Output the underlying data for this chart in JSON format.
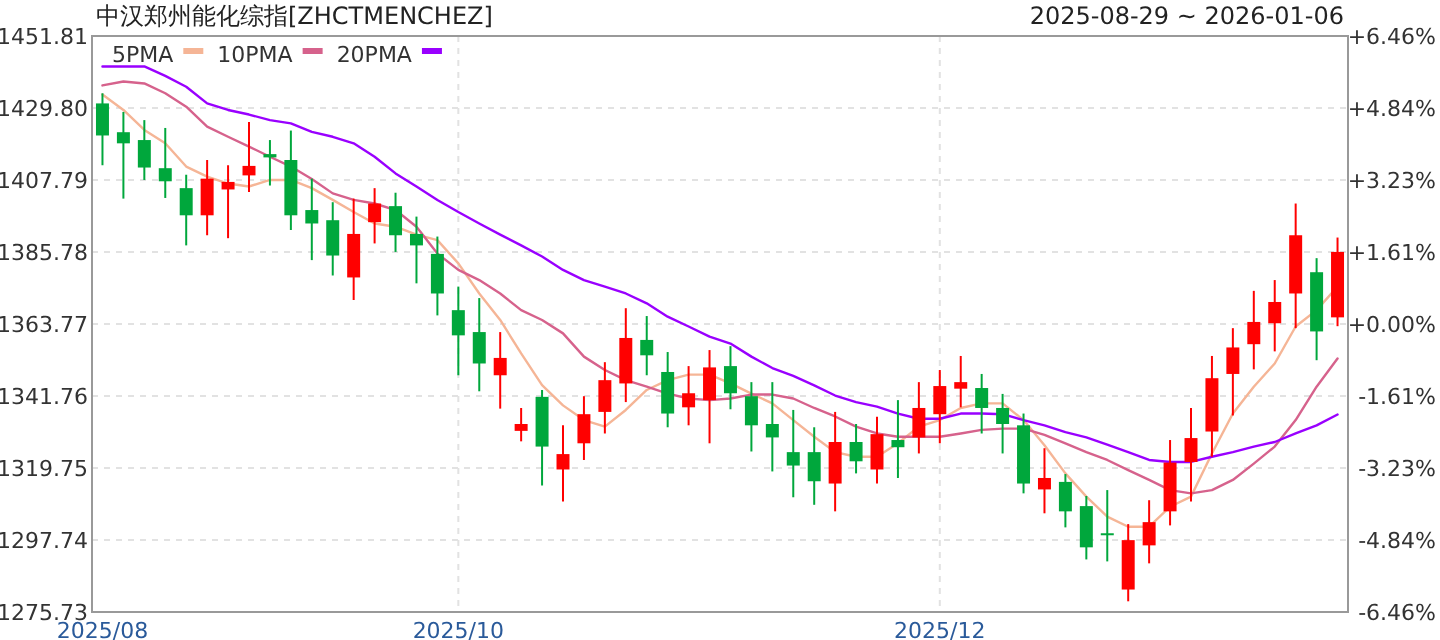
{
  "chart_data": {
    "type": "candlestick",
    "title": "中汉郑州能化综指[ZHCTMENCHEZ]",
    "subtitle": "2025-08-29 ~ 2026-01-06",
    "categories": [
      "2025/08",
      null,
      null,
      null,
      null,
      null,
      null,
      null,
      null,
      null,
      null,
      null,
      null,
      null,
      null,
      null,
      null,
      "2025/10",
      null,
      null,
      null,
      null,
      null,
      null,
      null,
      null,
      null,
      null,
      null,
      null,
      null,
      null,
      null,
      null,
      null,
      null,
      null,
      null,
      null,
      null,
      "2025/12",
      null,
      null,
      null,
      null,
      null,
      null,
      null,
      null,
      null,
      null,
      null,
      null,
      null,
      null,
      null,
      null,
      null,
      null,
      null
    ],
    "ohlc": [
      [
        1431.2,
        1434.3,
        1412.3,
        1421.4
      ],
      [
        1422.4,
        1428.6,
        1402.1,
        1419.0
      ],
      [
        1420.0,
        1426.1,
        1407.8,
        1411.6
      ],
      [
        1411.4,
        1423.7,
        1402.3,
        1407.4
      ],
      [
        1405.3,
        1409.4,
        1387.8,
        1397.0
      ],
      [
        1397.0,
        1413.9,
        1390.9,
        1408.2
      ],
      [
        1404.9,
        1412.3,
        1390.0,
        1407.2
      ],
      [
        1409.2,
        1425.5,
        1404.1,
        1412.1
      ],
      [
        1415.7,
        1420.0,
        1406.1,
        1414.7
      ],
      [
        1413.9,
        1422.9,
        1392.5,
        1397.0
      ],
      [
        1398.6,
        1408.2,
        1383.3,
        1394.5
      ],
      [
        1395.5,
        1401.0,
        1378.6,
        1384.7
      ],
      [
        1378.0,
        1402.1,
        1371.1,
        1391.3
      ],
      [
        1394.9,
        1405.3,
        1388.4,
        1400.6
      ],
      [
        1399.8,
        1403.9,
        1385.8,
        1390.9
      ],
      [
        1391.3,
        1396.6,
        1376.2,
        1387.8
      ],
      [
        1385.2,
        1390.5,
        1366.4,
        1373.1
      ],
      [
        1368.0,
        1375.2,
        1348.1,
        1360.3
      ],
      [
        1361.3,
        1371.7,
        1343.2,
        1351.7
      ],
      [
        1348.1,
        1361.3,
        1337.9,
        1353.4
      ],
      [
        1331.1,
        1338.1,
        1327.9,
        1333.2
      ],
      [
        1341.5,
        1343.6,
        1314.4,
        1326.3
      ],
      [
        1319.3,
        1332.8,
        1309.5,
        1324.0
      ],
      [
        1327.3,
        1341.7,
        1322.2,
        1336.2
      ],
      [
        1336.9,
        1352.1,
        1330.3,
        1346.6
      ],
      [
        1345.6,
        1368.6,
        1339.9,
        1359.5
      ],
      [
        1358.9,
        1366.2,
        1348.1,
        1354.2
      ],
      [
        1349.1,
        1355.2,
        1332.2,
        1336.4
      ],
      [
        1338.3,
        1350.9,
        1332.8,
        1342.6
      ],
      [
        1340.5,
        1355.8,
        1327.3,
        1350.5
      ],
      [
        1350.9,
        1357.0,
        1337.7,
        1342.6
      ],
      [
        1341.7,
        1346.0,
        1324.8,
        1332.8
      ],
      [
        1333.2,
        1346.0,
        1318.7,
        1329.1
      ],
      [
        1324.6,
        1337.5,
        1310.8,
        1320.5
      ],
      [
        1324.6,
        1332.2,
        1308.5,
        1315.7
      ],
      [
        1315.0,
        1336.9,
        1306.5,
        1327.7
      ],
      [
        1327.7,
        1333.2,
        1318.1,
        1321.8
      ],
      [
        1319.3,
        1335.4,
        1315.0,
        1330.1
      ],
      [
        1328.3,
        1340.5,
        1316.7,
        1326.1
      ],
      [
        1329.1,
        1346.0,
        1324.2,
        1338.1
      ],
      [
        1336.2,
        1349.7,
        1327.3,
        1344.8
      ],
      [
        1344.0,
        1354.0,
        1338.3,
        1346.0
      ],
      [
        1344.2,
        1348.5,
        1330.3,
        1338.1
      ],
      [
        1338.1,
        1342.4,
        1324.2,
        1333.2
      ],
      [
        1332.8,
        1336.4,
        1312.0,
        1315.0
      ],
      [
        1313.2,
        1325.8,
        1305.9,
        1316.7
      ],
      [
        1315.5,
        1317.9,
        1301.6,
        1306.5
      ],
      [
        1308.1,
        1311.2,
        1291.8,
        1295.5
      ],
      [
        1299.8,
        1313.0,
        1291.2,
        1299.2
      ],
      [
        1282.6,
        1302.6,
        1279.0,
        1297.7
      ],
      [
        1296.1,
        1309.9,
        1290.6,
        1303.2
      ],
      [
        1306.5,
        1328.3,
        1302.2,
        1321.4
      ],
      [
        1321.6,
        1338.1,
        1309.5,
        1328.9
      ],
      [
        1330.9,
        1354.0,
        1323.2,
        1347.2
      ],
      [
        1348.5,
        1362.5,
        1335.8,
        1356.6
      ],
      [
        1357.6,
        1373.9,
        1349.9,
        1364.4
      ],
      [
        1364.0,
        1377.2,
        1355.4,
        1370.5
      ],
      [
        1373.1,
        1400.6,
        1362.5,
        1390.9
      ],
      [
        1379.6,
        1383.9,
        1352.7,
        1361.5
      ],
      [
        1365.8,
        1390.2,
        1363.1,
        1385.8
      ]
    ],
    "colors": [
      "#00a73c",
      "#00a73c",
      "#00a73c",
      "#00a73c",
      "#00a73c",
      "#ff0000",
      "#ff0000",
      "#ff0000",
      "#00a73c",
      "#00a73c",
      "#00a73c",
      "#00a73c",
      "#ff0000",
      "#ff0000",
      "#00a73c",
      "#00a73c",
      "#00a73c",
      "#00a73c",
      "#00a73c",
      "#ff0000",
      "#ff0000",
      "#00a73c",
      "#ff0000",
      "#ff0000",
      "#ff0000",
      "#ff0000",
      "#00a73c",
      "#00a73c",
      "#ff0000",
      "#ff0000",
      "#00a73c",
      "#00a73c",
      "#00a73c",
      "#00a73c",
      "#00a73c",
      "#ff0000",
      "#00a73c",
      "#ff0000",
      "#00a73c",
      "#ff0000",
      "#ff0000",
      "#ff0000",
      "#00a73c",
      "#00a73c",
      "#00a73c",
      "#ff0000",
      "#00a73c",
      "#00a73c",
      "#00a73c",
      "#ff0000",
      "#ff0000",
      "#ff0000",
      "#ff0000",
      "#ff0000",
      "#ff0000",
      "#ff0000",
      "#ff0000",
      "#ff0000",
      "#00a73c",
      "#ff0000"
    ],
    "series": [
      {
        "name": "5PMA",
        "type": "line",
        "color": "#f5b596",
        "values": [
          1433.9,
          1429.2,
          1423.1,
          1419.0,
          1411.9,
          1408.8,
          1406.7,
          1405.8,
          1407.8,
          1407.8,
          1405.3,
          1401.7,
          1398.0,
          1394.5,
          1393.5,
          1391.1,
          1389.4,
          1382.3,
          1373.1,
          1365.0,
          1354.8,
          1345.1,
          1338.9,
          1334.4,
          1332.4,
          1337.5,
          1343.6,
          1346.6,
          1348.3,
          1348.3,
          1345.6,
          1342.5,
          1339.5,
          1334.4,
          1329.3,
          1324.6,
          1323.2,
          1323.2,
          1327.3,
          1332.4,
          1334.4,
          1338.1,
          1339.5,
          1339.5,
          1334.4,
          1326.7,
          1318.1,
          1311.0,
          1304.9,
          1301.8,
          1301.8,
          1307.9,
          1311.0,
          1324.2,
          1336.4,
          1344.6,
          1351.7,
          1363.0,
          1368.0,
          1375.2
        ]
      },
      {
        "name": "10PMA",
        "type": "line",
        "color": "#d6628c",
        "values": [
          1436.7,
          1437.9,
          1437.3,
          1434.3,
          1430.2,
          1424.1,
          1421.0,
          1418.0,
          1414.9,
          1411.9,
          1408.1,
          1403.7,
          1401.7,
          1400.6,
          1398.6,
          1393.5,
          1385.3,
          1380.3,
          1377.2,
          1373.1,
          1368.0,
          1365.0,
          1360.9,
          1353.8,
          1349.7,
          1346.6,
          1344.6,
          1342.5,
          1341.0,
          1340.5,
          1341.0,
          1342.2,
          1342.2,
          1341.0,
          1338.1,
          1335.5,
          1332.4,
          1330.3,
          1329.3,
          1329.3,
          1329.3,
          1330.3,
          1331.4,
          1331.8,
          1331.8,
          1329.9,
          1327.3,
          1324.6,
          1322.2,
          1319.1,
          1316.1,
          1313.0,
          1312.0,
          1313.0,
          1316.1,
          1321.1,
          1326.3,
          1334.4,
          1344.6,
          1353.2
        ]
      },
      {
        "name": "20PMA",
        "type": "line",
        "color": "#9900ff",
        "values": [
          1442.5,
          1442.5,
          1442.5,
          1439.6,
          1436.3,
          1431.2,
          1429.2,
          1427.8,
          1426.1,
          1425.1,
          1422.5,
          1421.0,
          1419.0,
          1414.9,
          1409.8,
          1405.8,
          1401.7,
          1398.0,
          1394.5,
          1391.1,
          1387.8,
          1384.4,
          1380.3,
          1377.2,
          1375.2,
          1373.1,
          1370.1,
          1366.0,
          1363.0,
          1359.9,
          1357.8,
          1353.8,
          1350.3,
          1347.9,
          1345.0,
          1341.9,
          1339.9,
          1338.5,
          1336.4,
          1334.8,
          1334.8,
          1336.4,
          1336.4,
          1336.2,
          1334.4,
          1332.8,
          1330.7,
          1329.1,
          1326.9,
          1324.6,
          1322.2,
          1321.6,
          1321.6,
          1323.2,
          1324.6,
          1326.3,
          1327.7,
          1330.3,
          1332.8,
          1336.1
        ]
      }
    ],
    "ylim": [
      1275.73,
      1451.81
    ],
    "yticks": [
      1451.81,
      {
        "value": 1429.8,
        "label": "1429.80"
      },
      1407.79,
      1385.78,
      1363.77,
      1341.76,
      1319.75,
      1297.74,
      1275.73
    ],
    "y2lim": [
      -6.46,
      6.46
    ],
    "y2ticks": [
      {
        "value": 6.46,
        "label": "+6.46%"
      },
      {
        "value": 4.84,
        "label": "+4.84%"
      },
      {
        "value": 3.23,
        "label": "+3.23%"
      },
      {
        "value": 1.61,
        "label": "+1.61%"
      },
      {
        "value": 0,
        "label": "+0.00%"
      },
      {
        "value": -1.61,
        "label": "-1.61%"
      },
      {
        "value": -3.23,
        "label": "-3.23%"
      },
      {
        "value": -4.84,
        "label": "-4.84%"
      },
      {
        "value": -6.46,
        "label": "-6.46%"
      }
    ],
    "grid": true,
    "legend": "top left"
  }
}
